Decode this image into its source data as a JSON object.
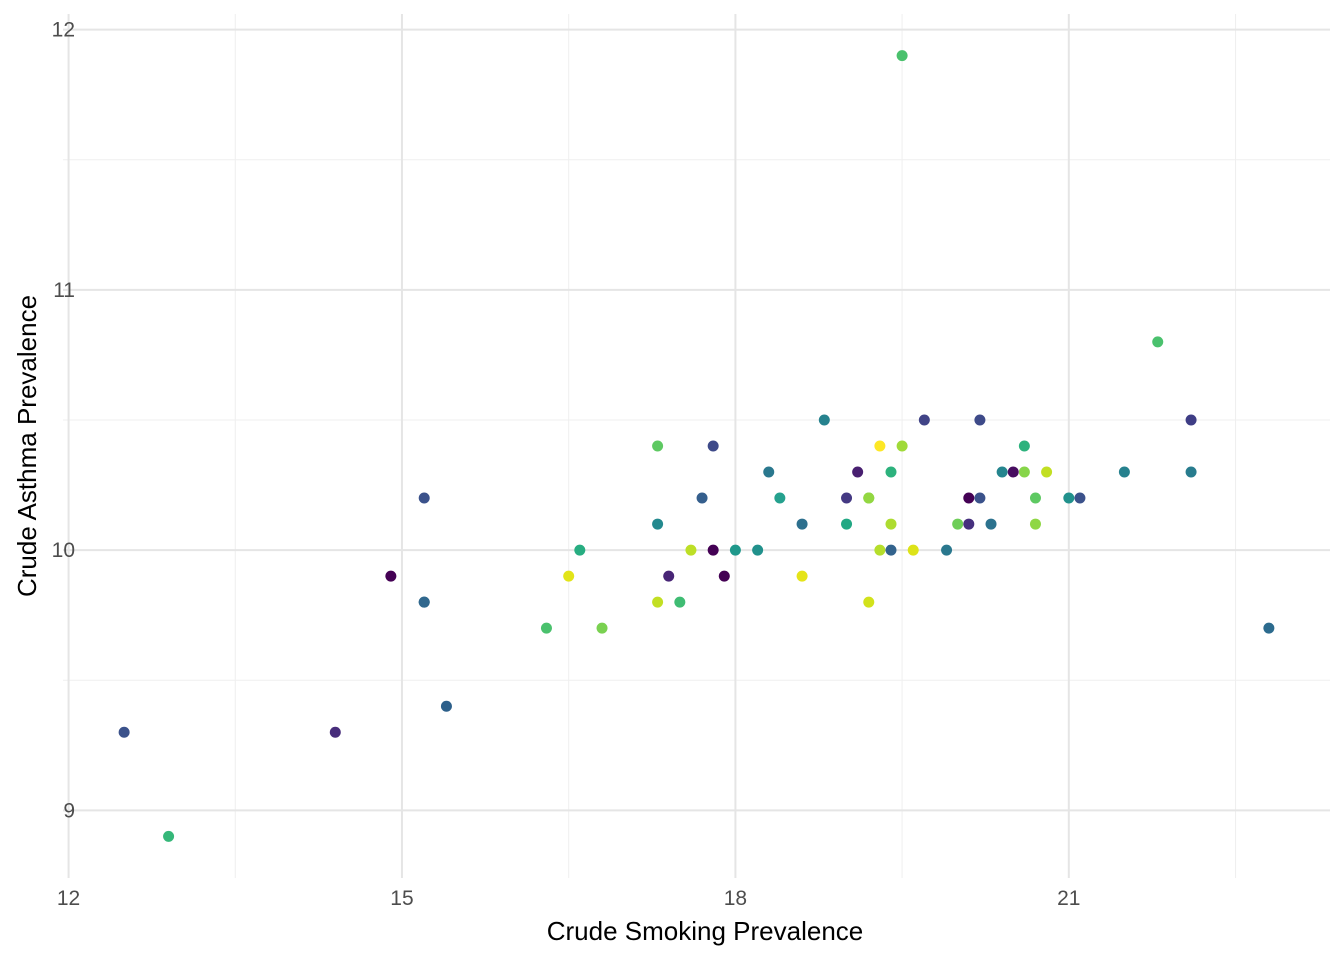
{
  "chart_data": {
    "type": "scatter",
    "title": "",
    "xlabel": "Crude Smoking Prevalence",
    "ylabel": "Crude Asthma Prevalence",
    "xlim": [
      11.95,
      23.35
    ],
    "ylim": [
      8.74,
      12.06
    ],
    "x_ticks": [
      12,
      15,
      18,
      21
    ],
    "y_ticks": [
      9,
      10,
      11,
      12
    ],
    "grid": true,
    "legend": "none",
    "points": [
      {
        "x": 12.5,
        "y": 9.3,
        "color": "#3b528b"
      },
      {
        "x": 12.9,
        "y": 8.9,
        "color": "#35b779"
      },
      {
        "x": 14.4,
        "y": 9.3,
        "color": "#472d7b"
      },
      {
        "x": 14.9,
        "y": 9.9,
        "color": "#440154"
      },
      {
        "x": 15.2,
        "y": 10.2,
        "color": "#3b528b"
      },
      {
        "x": 15.2,
        "y": 9.8,
        "color": "#2c728e"
      },
      {
        "x": 15.2,
        "y": 9.8,
        "color": "#31688e"
      },
      {
        "x": 15.4,
        "y": 9.4,
        "color": "#2c5f8a"
      },
      {
        "x": 16.3,
        "y": 9.7,
        "color": "#4ac16d"
      },
      {
        "x": 16.5,
        "y": 9.9,
        "color": "#e2e418"
      },
      {
        "x": 16.6,
        "y": 10.0,
        "color": "#27ad81"
      },
      {
        "x": 16.8,
        "y": 9.7,
        "color": "#7ad151"
      },
      {
        "x": 17.3,
        "y": 10.4,
        "color": "#5ec962"
      },
      {
        "x": 17.3,
        "y": 10.1,
        "color": "#23898e"
      },
      {
        "x": 17.3,
        "y": 9.8,
        "color": "#c2df23"
      },
      {
        "x": 17.4,
        "y": 9.9,
        "color": "#482576"
      },
      {
        "x": 17.5,
        "y": 9.8,
        "color": "#3fbc73"
      },
      {
        "x": 17.6,
        "y": 10.0,
        "color": "#bddf26"
      },
      {
        "x": 17.7,
        "y": 10.2,
        "color": "#355f8d"
      },
      {
        "x": 17.8,
        "y": 10.4,
        "color": "#3e4a89"
      },
      {
        "x": 17.8,
        "y": 10.0,
        "color": "#440154"
      },
      {
        "x": 17.9,
        "y": 9.9,
        "color": "#440154"
      },
      {
        "x": 18.0,
        "y": 10.0,
        "color": "#1f988b"
      },
      {
        "x": 18.2,
        "y": 10.0,
        "color": "#21918c"
      },
      {
        "x": 18.3,
        "y": 10.3,
        "color": "#2a788e"
      },
      {
        "x": 18.4,
        "y": 10.2,
        "color": "#25a18e"
      },
      {
        "x": 18.6,
        "y": 10.1,
        "color": "#2d708e"
      },
      {
        "x": 18.6,
        "y": 9.9,
        "color": "#e5e419"
      },
      {
        "x": 18.8,
        "y": 10.5,
        "color": "#26828e"
      },
      {
        "x": 19.0,
        "y": 10.2,
        "color": "#443983"
      },
      {
        "x": 19.0,
        "y": 10.1,
        "color": "#22a884"
      },
      {
        "x": 19.1,
        "y": 10.3,
        "color": "#481f70"
      },
      {
        "x": 19.2,
        "y": 10.2,
        "color": "#7ad151"
      },
      {
        "x": 19.2,
        "y": 10.2,
        "color": "#93d741"
      },
      {
        "x": 19.2,
        "y": 9.8,
        "color": "#d2e21b"
      },
      {
        "x": 19.3,
        "y": 10.4,
        "color": "#fde725"
      },
      {
        "x": 19.3,
        "y": 10.0,
        "color": "#b5de2b"
      },
      {
        "x": 19.4,
        "y": 10.3,
        "color": "#2db27d"
      },
      {
        "x": 19.4,
        "y": 10.1,
        "color": "#addc30"
      },
      {
        "x": 19.4,
        "y": 10.0,
        "color": "#33638d"
      },
      {
        "x": 19.5,
        "y": 11.9,
        "color": "#4ac16d"
      },
      {
        "x": 19.5,
        "y": 10.4,
        "color": "#a0da39"
      },
      {
        "x": 19.6,
        "y": 10.0,
        "color": "#dde318"
      },
      {
        "x": 19.7,
        "y": 10.5,
        "color": "#414487"
      },
      {
        "x": 19.9,
        "y": 10.0,
        "color": "#2a788e"
      },
      {
        "x": 20.0,
        "y": 10.1,
        "color": "#6ece58"
      },
      {
        "x": 20.1,
        "y": 10.2,
        "color": "#440154"
      },
      {
        "x": 20.1,
        "y": 10.1,
        "color": "#46307e"
      },
      {
        "x": 20.2,
        "y": 10.5,
        "color": "#3e4a89"
      },
      {
        "x": 20.2,
        "y": 10.2,
        "color": "#3b528b"
      },
      {
        "x": 20.3,
        "y": 10.1,
        "color": "#2c728e"
      },
      {
        "x": 20.4,
        "y": 10.3,
        "color": "#25858e"
      },
      {
        "x": 20.5,
        "y": 10.3,
        "color": "#470d60"
      },
      {
        "x": 20.6,
        "y": 10.4,
        "color": "#2db27d"
      },
      {
        "x": 20.6,
        "y": 10.3,
        "color": "#86d549"
      },
      {
        "x": 20.7,
        "y": 10.2,
        "color": "#5ec962"
      },
      {
        "x": 20.7,
        "y": 10.1,
        "color": "#8fd744"
      },
      {
        "x": 20.8,
        "y": 10.3,
        "color": "#c2df23"
      },
      {
        "x": 21.0,
        "y": 10.2,
        "color": "#21918c"
      },
      {
        "x": 21.1,
        "y": 10.2,
        "color": "#3b528b"
      },
      {
        "x": 21.5,
        "y": 10.3,
        "color": "#26818e"
      },
      {
        "x": 21.8,
        "y": 10.8,
        "color": "#4ac16d"
      },
      {
        "x": 22.1,
        "y": 10.5,
        "color": "#3e3d85"
      },
      {
        "x": 22.1,
        "y": 10.3,
        "color": "#287c8e"
      },
      {
        "x": 22.8,
        "y": 9.7,
        "color": "#2c6b8e"
      }
    ]
  }
}
